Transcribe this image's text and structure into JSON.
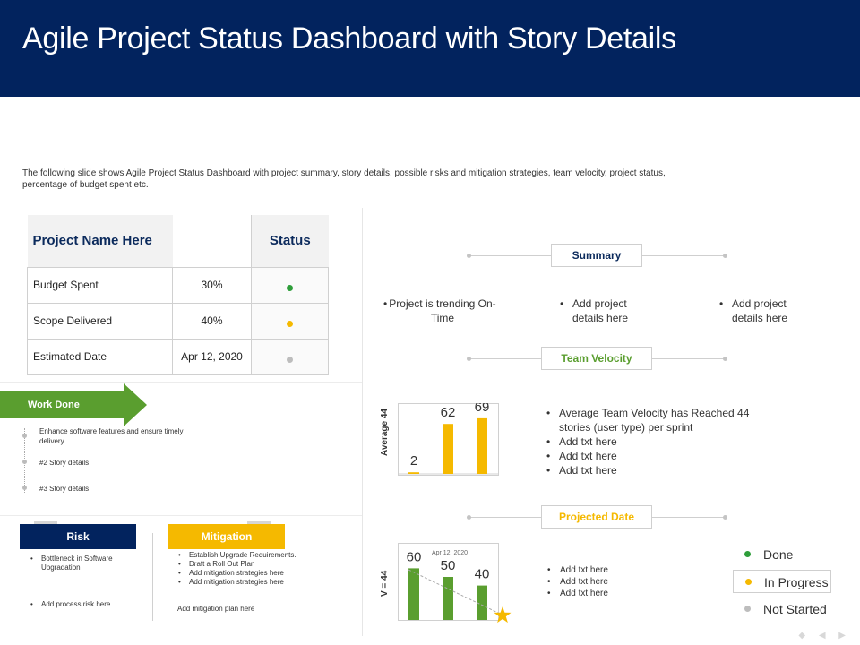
{
  "header": {
    "title": "Agile Project Status Dashboard with Story Details"
  },
  "description": "The following slide shows Agile Project Status Dashboard with project summary, story details, possible risks and mitigation  strategies, team velocity, project status, percentage of budget spent etc.",
  "project_table": {
    "title": "Project Name Here",
    "status_header": "Status",
    "rows": [
      {
        "label": "Budget Spent",
        "value": "30%",
        "status_color": "#2e9e3a"
      },
      {
        "label": "Scope Delivered",
        "value": "40%",
        "status_color": "#f5b900"
      },
      {
        "label": "Estimated Date",
        "value": "Apr 12, 2020",
        "status_color": "#bdbdbd"
      }
    ]
  },
  "work_done": {
    "label": "Work Done",
    "color": "#5a9e2f",
    "items": [
      "Enhance software features and ensure timely delivery.",
      "#2 Story details",
      "#3 Story details"
    ]
  },
  "risk": {
    "label": "Risk",
    "items": [
      "Bottleneck in Software Upgradation",
      "Add process risk here"
    ]
  },
  "mitigation": {
    "label": "Mitigation",
    "items": [
      "Establish Upgrade Requirements.",
      "Draft a Roll Out Plan",
      "Add  mitigation strategies here",
      "Add  mitigation strategies here"
    ],
    "plan": "Add  mitigation plan here"
  },
  "summary": {
    "label": "Summary",
    "items": [
      "Project is trending On-Time",
      "Add project details here",
      "Add project details here"
    ]
  },
  "team_velocity": {
    "label": "Team Velocity",
    "items": [
      "Average  Team  Velocity has Reached 44 stories (user type) per sprint",
      "Add txt here",
      "Add txt here",
      "Add txt here"
    ]
  },
  "projected_date": {
    "label": "Projected Date",
    "items": [
      "Add txt here",
      "Add txt here",
      "Add txt here"
    ]
  },
  "chart_data": [
    {
      "type": "bar",
      "ylabel": "Average 44",
      "values": [
        2,
        62,
        69
      ],
      "data_labels": [
        "2",
        "62",
        "69"
      ],
      "color": "#f5b900",
      "ylim": [
        0,
        80
      ]
    },
    {
      "type": "bar",
      "ylabel": "V = 44",
      "values": [
        60,
        50,
        40
      ],
      "data_labels": [
        "60",
        "50",
        "40"
      ],
      "annotation": "Apr 12, 2020",
      "color": "#5a9e2f",
      "trend": "dashed line declining to a star marker",
      "ylim": [
        0,
        75
      ]
    }
  ],
  "legend": [
    {
      "label": "Done",
      "color": "#2e9e3a"
    },
    {
      "label": "In Progress",
      "color": "#f5b900"
    },
    {
      "label": "Not Started",
      "color": "#bdbdbd"
    }
  ],
  "colors": {
    "navy": "#02235e",
    "green": "#5a9e2f",
    "yellow": "#f5b900",
    "grey": "#bdbdbd"
  }
}
